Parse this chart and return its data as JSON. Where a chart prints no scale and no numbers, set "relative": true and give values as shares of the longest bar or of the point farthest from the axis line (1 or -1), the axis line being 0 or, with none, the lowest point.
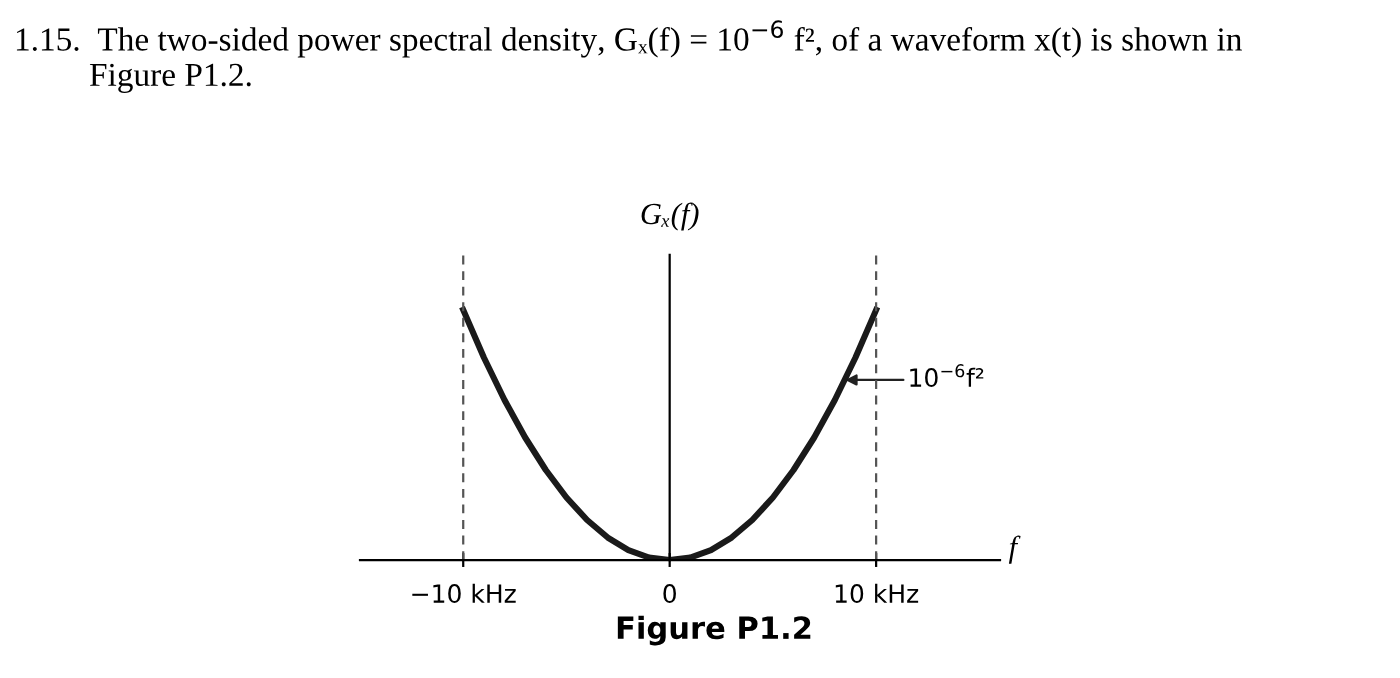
{
  "chart_data": {
    "type": "line",
    "relative": true,
    "title": "1.15.  The two-sided power spectral density, Gₓ(f) = 10$^{−6}$ f², of a waveform x(t) is shown in\n         Figure P1.2.",
    "ylabel": "Gₓ(f)",
    "xlabel": "f",
    "x": [
      -10,
      -9,
      -8,
      -7,
      -6,
      -5,
      -4,
      -3,
      -2,
      -1,
      0,
      1,
      2,
      3,
      4,
      5,
      6,
      7,
      8,
      9,
      10
    ],
    "series": [
      {
        "color": "#1a1a1a",
        "values": [
          1,
          0.81,
          0.64,
          0.49,
          0.36,
          0.25,
          0.16,
          0.09,
          0.04,
          0.01,
          0,
          0.01,
          0.04,
          0.09,
          0.16,
          0.25,
          0.36,
          0.49,
          0.64,
          0.81,
          1
        ]
      }
    ],
    "xlim": [
      -15,
      16
    ],
    "xticks": [
      {
        "value": -10,
        "label": "−10 kHz"
      },
      0,
      {
        "value": 10,
        "label": "10 kHz"
      }
    ],
    "ref_lines": [
      {
        "axis": "x",
        "value": -10,
        "label": null,
        "line_style": "dashed",
        "color": "#555555"
      },
      {
        "axis": "x",
        "value": 10,
        "label": null,
        "line_style": "dashed",
        "color": "#555555"
      }
    ],
    "annotations": [
      {
        "text": "10$^{−6}$f²",
        "x": 8.5,
        "y": 0.72
      },
      "Figure P1.2"
    ],
    "grid": false,
    "legend": false,
    "marker": "none",
    "line_style": "solid"
  }
}
